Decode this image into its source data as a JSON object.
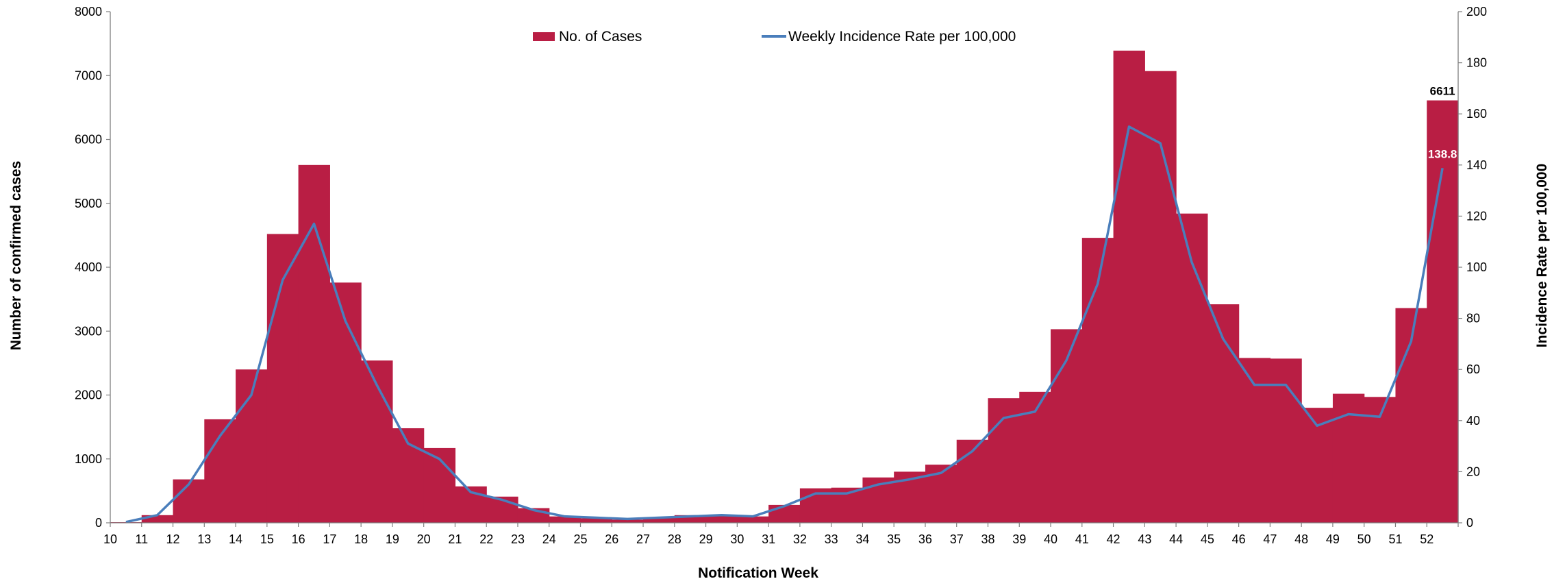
{
  "chart_data": {
    "type": "bar+line",
    "xlabel": "Notification Week",
    "ylabel_left": "Number of confirmed cases",
    "ylabel_right": "Incidence Rate per 100,000",
    "ylim_left": [
      0,
      8000
    ],
    "ylim_right": [
      0,
      200
    ],
    "yticks_left": [
      0,
      1000,
      2000,
      3000,
      4000,
      5000,
      6000,
      7000,
      8000
    ],
    "yticks_right": [
      0,
      20,
      40,
      60,
      80,
      100,
      120,
      140,
      160,
      180,
      200
    ],
    "grid": false,
    "legend_position": "top-center",
    "categories": [
      "10",
      "11",
      "12",
      "13",
      "14",
      "15",
      "16",
      "17",
      "18",
      "19",
      "20",
      "21",
      "22",
      "23",
      "24",
      "25",
      "26",
      "27",
      "28",
      "29",
      "30",
      "31",
      "32",
      "33",
      "34",
      "35",
      "36",
      "37",
      "38",
      "39",
      "40",
      "41",
      "42",
      "43",
      "44",
      "45",
      "46",
      "47",
      "48",
      "49",
      "50",
      "51",
      "52"
    ],
    "series": [
      {
        "name": "No. of Cases",
        "kind": "bar",
        "axis": "left",
        "color": "#B91E44",
        "values": [
          10,
          120,
          680,
          1620,
          2400,
          4520,
          5600,
          3760,
          2540,
          1480,
          1170,
          570,
          410,
          230,
          100,
          70,
          50,
          80,
          120,
          110,
          100,
          280,
          540,
          550,
          710,
          800,
          910,
          1300,
          1950,
          2050,
          3030,
          4460,
          7390,
          7070,
          4840,
          3420,
          2580,
          2570,
          1800,
          2020,
          1970,
          3360,
          6611
        ]
      },
      {
        "name": "Weekly Incidence Rate per 100,000",
        "kind": "line",
        "axis": "right",
        "color": "#4A7EBB",
        "values": [
          0.3,
          3,
          15,
          34,
          50,
          95,
          117,
          79,
          54,
          31,
          25,
          12,
          9,
          5,
          2.5,
          2,
          1.5,
          2,
          2.5,
          3,
          2.5,
          6.5,
          11.5,
          11.5,
          15,
          17,
          19.5,
          28,
          41,
          43.5,
          63.5,
          93.5,
          155,
          148.5,
          102,
          72,
          54,
          54,
          38,
          42.5,
          41.5,
          71,
          138.8
        ]
      }
    ],
    "annotations": [
      {
        "series": "No. of Cases",
        "category": "52",
        "text": "6611",
        "color": "#000000"
      },
      {
        "series": "Weekly Incidence Rate per 100,000",
        "category": "52",
        "text": "138.8",
        "color": "#ffffff"
      }
    ]
  }
}
